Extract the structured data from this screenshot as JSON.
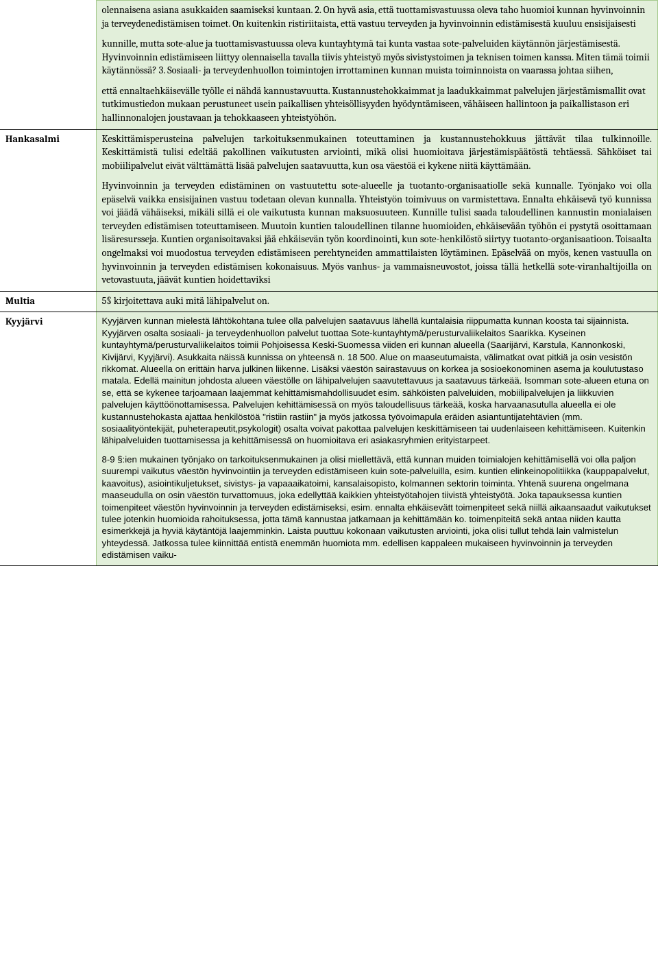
{
  "rows": [
    {
      "label": "",
      "body_classes": "body",
      "paragraphs": [
        "olennaisena asiana asukkaiden saamiseksi kuntaan. 2. On hyvä asia, että tuottamisvastuussa oleva taho huomioi kunnan hyvinvoinnin ja terveydenedistämisen toimet. On kuitenkin ristiriitaista, että vastuu terveyden ja hyvinvoinnin edistämisestä kuuluu ensisijaisesti",
        "kunnille, mutta sote-alue ja tuottamisvastuussa oleva kuntayhtymä tai kunta vastaa sote-palveluiden käytännön järjestämisestä. Hyvinvoinnin edistämiseen liittyy olennaisella tavalla tiivis yhteistyö myös sivistystoimen ja teknisen toimen kanssa. Miten tämä toimii käytännössä? 3. Sosiaali- ja terveydenhuollon toimintojen irrottaminen kunnan muista toiminnoista on vaarassa johtaa siihen,",
        "että ennaltaehkäisevälle työlle ei nähdä kannustavuutta. Kustannustehokkaimmat ja laadukkaimmat palvelujen järjestämismallit ovat tutkimustiedon mukaan perustuneet usein paikallisen yhteisöllisyyden hyödyntämiseen, vähäiseen hallintoon ja paikallistason eri hallinnonalojen joustavaan ja tehokkaaseen yhteistyöhön."
      ]
    },
    {
      "label": "Hankasalmi",
      "body_classes": "body justify",
      "paragraphs": [
        "Keskittämisperusteina palvelujen tarkoituksenmukainen toteuttaminen ja kustannustehokkuus jättävät tilaa tulkinnoille. Keskittämistä tulisi edeltää pakollinen vaikutusten arviointi, mikä olisi huomioitava järjestämispäätöstä tehtäessä. Sähköiset tai mobiilipalvelut eivät välttämättä lisää palvelujen saatavuutta, kun osa väestöä ei kykene niitä käyttämään.",
        "Hyvinvoinnin ja terveyden edistäminen on vastuutettu sote-alueelle ja tuotanto-organisaatiolle sekä kunnalle. Työnjako voi olla epäselvä vaikka ensisijainen vastuu todetaan olevan kunnalla. Yhteistyön toimivuus on varmistettava. Ennalta ehkäisevä työ kunnissa voi jäädä vähäiseksi, mikäli sillä ei ole vaikutusta kunnan maksuosuuteen. Kunnille tulisi saada taloudellinen kannustin monialaisen terveyden edistämisen toteuttamiseen. Muutoin kuntien taloudellinen tilanne huomioiden, ehkäisevään työhön ei pystytä osoittamaan lisäresursseja. Kuntien organisoitavaksi jää ehkäisevän työn koordinointi, kun sote-henkilöstö siirtyy tuotanto-organisaatioon. Toisaalta ongelmaksi voi muodostua terveyden edistämiseen perehtyneiden ammattilaisten löytäminen. Epäselvää on myös, kenen vastuulla on hyvinvoinnin ja terveyden edistämisen kokonaisuus. Myös vanhus- ja vammaisneuvostot, joissa tällä hetkellä sote-viranhaltijoilla on vetovastuuta, jäävät kuntien hoidettaviksi"
      ]
    },
    {
      "label": "Multia",
      "body_classes": "body",
      "paragraphs": [
        "5§ kirjoitettava auki mitä lähipalvelut on."
      ]
    },
    {
      "label": "Kyyjärvi",
      "body_classes": "body kyy",
      "paragraphs": [
        "Kyyjärven kunnan mielestä lähtökohtana tulee olla palvelujen saatavuus lähellä kuntalaisia riippumatta kunnan koosta tai sijainnista. Kyyjärven osalta sosiaali- ja terveydenhuollon palvelut tuottaa Sote-kuntayhtymä/perusturvaliikelaitos Saarikka. Kyseinen kuntayhtymä/perusturvaliikelaitos toimii Pohjoisessa Keski-Suomessa viiden eri kunnan alueella (Saarijärvi, Karstula, Kannonkoski, Kivijärvi, Kyyjärvi). Asukkaita näissä kunnissa on yhteensä n. 18 500. Alue on maaseutumaista, välimatkat ovat pitkiä ja osin vesistön rikkomat. Alueella on erittäin harva julkinen liikenne. Lisäksi väestön sairastavuus on korkea ja sosioekonominen asema ja koulutustaso matala. Edellä mainitun johdosta alueen väestölle on lähipalvelujen saavutettavuus ja saatavuus tärkeää. Isomman sote-alueen etuna on se, että se kykenee tarjoamaan laajemmat kehittämismahdollisuudet esim. sähköisten palveluiden, mobiilipalvelujen ja liikkuvien palvelujen käyttöönottamisessa. Palvelujen kehittämisessä on myös taloudellisuus tärkeää, koska harvaanasutulla alueella ei ole kustannustehokasta ajattaa henkilöstöä \"ristiin rastiin\" ja myös jatkossa työvoimapula eräiden asiantuntijatehtävien (mm. sosiaalityöntekijät, puheterapeutit,psykologit) osalta voivat pakottaa palvelujen keskittämiseen tai uudenlaiseen kehittämiseen. Kuitenkin lähipalveluiden tuottamisessa ja kehittämisessä on huomioitava eri asiakasryhmien erityistarpeet.",
        "8-9 §:ien mukainen työnjako on tarkoituksenmukainen ja olisi miellettävä, että kunnan muiden toimialojen kehittämisellä voi olla paljon suurempi vaikutus väestön hyvinvointiin ja terveyden edistämiseen kuin sote-palveluilla, esim. kuntien elinkeinopolitiikka (kauppapalvelut, kaavoitus), asiointikuljetukset, sivistys- ja vapaaaikatoimi, kansalaisopisto, kolmannen sektorin toiminta. Yhtenä suurena ongelmana maaseudulla on osin väestön turvattomuus, joka edellyttää kaikkien yhteistyötahojen tiivistä yhteistyötä. Joka tapauksessa kuntien toimenpiteet väestön hyvinvoinnin ja terveyden edistämiseksi, esim. ennalta ehkäisevätt toimenpiteet sekä niillä aikaansaadut vaikutukset tulee jotenkin huomioida rahoituksessa, jotta tämä kannustaa jatkamaan ja kehittämään ko. toimenpiteitä sekä antaa niiden kautta esimerkkejä ja hyviä käytäntöjä laajemminkin. Laista puuttuu kokonaan vaikutusten arviointi, joka olisi tullut tehdä lain valmistelun yhteydessä. Jatkossa tulee kiinnittää entistä enemmän huomiota mm. edellisen kappaleen mukaiseen hyvinvoinnin ja terveyden edistämisen vaiku-"
      ]
    }
  ]
}
